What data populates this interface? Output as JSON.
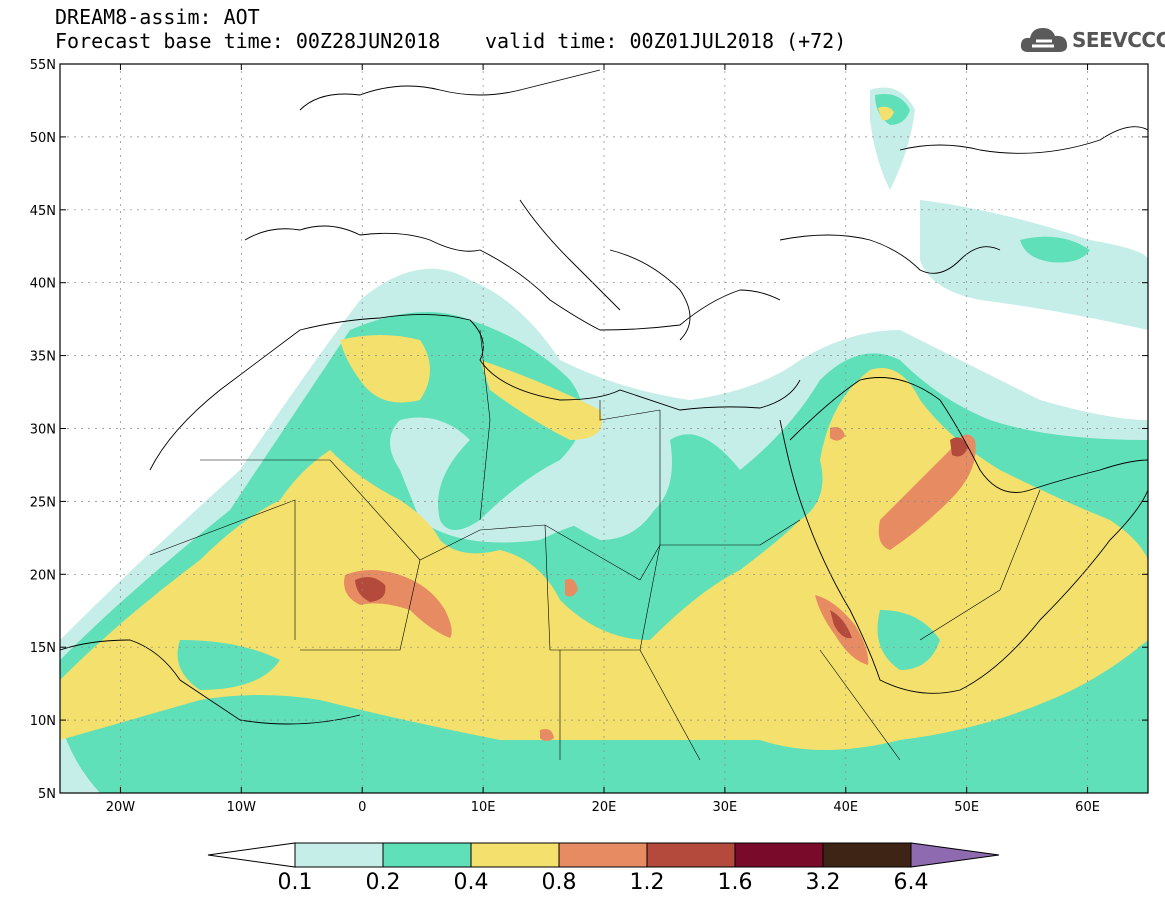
{
  "header": {
    "model_line": "DREAM8-assim: AOT",
    "base_time_line": "Forecast base time: 00Z28JUN2018",
    "valid_time_line": "valid time: 00Z01JUL2018 (+72)",
    "logo_text": "SEEVCCC",
    "logo_icon": "cloud-icon"
  },
  "map": {
    "lon_range": [
      -25,
      65
    ],
    "lat_range": [
      5,
      55
    ],
    "lon_ticks": [
      {
        "value": -20,
        "label": "20W"
      },
      {
        "value": -10,
        "label": "10W"
      },
      {
        "value": 0,
        "label": "0"
      },
      {
        "value": 10,
        "label": "10E"
      },
      {
        "value": 20,
        "label": "20E"
      },
      {
        "value": 30,
        "label": "30E"
      },
      {
        "value": 40,
        "label": "40E"
      },
      {
        "value": 50,
        "label": "50E"
      },
      {
        "value": 60,
        "label": "60E"
      }
    ],
    "lat_ticks": [
      {
        "value": 55,
        "label": "55N"
      },
      {
        "value": 50,
        "label": "50N"
      },
      {
        "value": 45,
        "label": "45N"
      },
      {
        "value": 40,
        "label": "40N"
      },
      {
        "value": 35,
        "label": "35N"
      },
      {
        "value": 30,
        "label": "30N"
      },
      {
        "value": 25,
        "label": "25N"
      },
      {
        "value": 20,
        "label": "20N"
      },
      {
        "value": 15,
        "label": "15N"
      },
      {
        "value": 10,
        "label": "10N"
      },
      {
        "value": 5,
        "label": "5N"
      }
    ]
  },
  "colorbar": {
    "colors": [
      "#c6eee8",
      "#5fe0b8",
      "#f4e06c",
      "#e78c62",
      "#b44a3c",
      "#7a0a2a",
      "#3e2414",
      "#8e6bb0"
    ],
    "labels": [
      "0.1",
      "0.2",
      "0.4",
      "0.8",
      "1.2",
      "1.6",
      "3.2",
      "6.4"
    ]
  }
}
